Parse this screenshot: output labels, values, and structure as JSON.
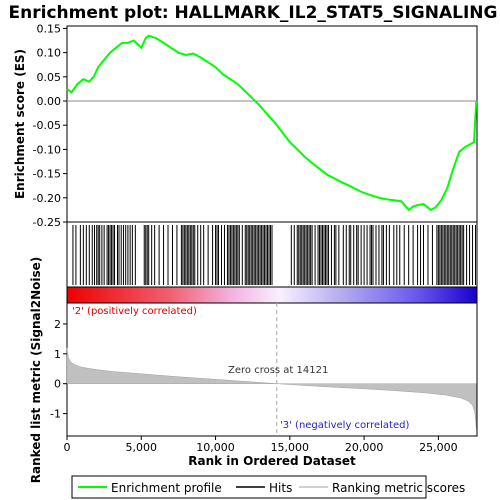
{
  "chart_data": [
    {
      "type": "line",
      "title": "Enrichment plot: HALLMARK_IL2_STAT5_SIGNALING",
      "ylabel": "Enrichment score (ES)",
      "xlim": [
        0,
        27600
      ],
      "ylim": [
        -0.25,
        0.155
      ],
      "yticks": [
        "0.15",
        "0.10",
        "0.05",
        "0.00",
        "-0.05",
        "-0.10",
        "-0.15",
        "-0.20",
        "-0.25"
      ],
      "ytick_values": [
        0.15,
        0.1,
        0.05,
        0.0,
        -0.05,
        -0.1,
        -0.15,
        -0.2,
        -0.25
      ],
      "series": [
        {
          "name": "Enrichment profile",
          "color": "#00ff00",
          "x": [
            0,
            300,
            700,
            1100,
            1500,
            1800,
            2100,
            2500,
            2900,
            3300,
            3700,
            4100,
            4500,
            5000,
            5300,
            5500,
            6000,
            6500,
            7000,
            7500,
            8000,
            8500,
            9000,
            9500,
            10000,
            10500,
            11000,
            11500,
            12000,
            12500,
            13000,
            13500,
            14000,
            14500,
            15000,
            15500,
            16000,
            16500,
            17000,
            17500,
            18000,
            18500,
            19000,
            19500,
            20000,
            20500,
            21000,
            21500,
            22000,
            22500,
            23000,
            23300,
            23600,
            24000,
            24500,
            24800,
            25200,
            25600,
            26000,
            26400,
            26800,
            27100,
            27400,
            27550
          ],
          "values": [
            0.025,
            0.018,
            0.035,
            0.045,
            0.04,
            0.05,
            0.07,
            0.085,
            0.1,
            0.11,
            0.12,
            0.12,
            0.125,
            0.11,
            0.13,
            0.135,
            0.13,
            0.12,
            0.11,
            0.1,
            0.095,
            0.098,
            0.09,
            0.08,
            0.07,
            0.055,
            0.045,
            0.035,
            0.02,
            0.005,
            -0.01,
            -0.028,
            -0.045,
            -0.065,
            -0.085,
            -0.1,
            -0.115,
            -0.128,
            -0.14,
            -0.152,
            -0.16,
            -0.168,
            -0.175,
            -0.183,
            -0.19,
            -0.195,
            -0.2,
            -0.203,
            -0.205,
            -0.207,
            -0.225,
            -0.218,
            -0.215,
            -0.213,
            -0.225,
            -0.22,
            -0.205,
            -0.18,
            -0.14,
            -0.105,
            -0.095,
            -0.09,
            -0.085,
            0.0
          ]
        }
      ]
    },
    {
      "type": "hits",
      "series_name": "Hits",
      "hit_positions": [
        400,
        600,
        900,
        1100,
        1300,
        1500,
        1700,
        1850,
        2000,
        2100,
        2200,
        2350,
        2500,
        2700,
        2800,
        2900,
        3000,
        3100,
        3200,
        3400,
        3500,
        3650,
        3800,
        3950,
        4100,
        4250,
        4400,
        4600,
        5200,
        5300,
        5400,
        5500,
        5700,
        5900,
        6200,
        6500,
        6800,
        7100,
        7400,
        7700,
        7800,
        7900,
        8000,
        8100,
        8200,
        8300,
        8400,
        8500,
        8600,
        8800,
        9000,
        9200,
        9500,
        9800,
        10000,
        10100,
        10200,
        10400,
        10600,
        10800,
        10900,
        11000,
        11100,
        11200,
        11300,
        11400,
        11500,
        11600,
        11800,
        12000,
        12100,
        12200,
        12300,
        12400,
        12500,
        12600,
        12700,
        12800,
        12900,
        13000,
        13100,
        13200,
        13300,
        13400,
        13500,
        13600,
        13700,
        13800,
        15100,
        15300,
        15500,
        15600,
        15700,
        15800,
        15900,
        16000,
        16100,
        16200,
        16300,
        16400,
        16500,
        16700,
        16900,
        17000,
        17100,
        17200,
        17300,
        17400,
        17500,
        17600,
        17800,
        18000,
        18100,
        18300,
        18600,
        18800,
        19000,
        19100,
        19300,
        19500,
        19600,
        19800,
        20000,
        20200,
        20400,
        20500,
        20600,
        20800,
        21000,
        21200,
        21300,
        21500,
        21700,
        22000,
        22200,
        22400,
        22700,
        23000,
        23300,
        23600,
        23800,
        24000,
        24300,
        24600,
        24900,
        25000,
        25100,
        25200,
        25300,
        25400,
        25500,
        25600,
        25700,
        25800,
        25900,
        26000,
        26100,
        26200,
        26300,
        26400,
        26500,
        26600,
        26700,
        26900,
        27100,
        27300,
        27500
      ]
    },
    {
      "type": "area",
      "xlabel": "Rank in Ordered Dataset",
      "ylabel": "Ranked list metric (Signal2Noise)",
      "xlim": [
        0,
        27600
      ],
      "ylim": [
        -1.75,
        2.7
      ],
      "xticks": [
        "0",
        "5,000",
        "10,000",
        "15,000",
        "20,000",
        "25,000"
      ],
      "xtick_values": [
        0,
        5000,
        10000,
        15000,
        20000,
        25000
      ],
      "yticks": [
        "2",
        "1",
        "0",
        "-1"
      ],
      "ytick_values": [
        2,
        1,
        0,
        -1
      ],
      "series": [
        {
          "name": "Ranking metric scores",
          "color": "#c0c0c0",
          "x": [
            0,
            100,
            300,
            600,
            1000,
            2000,
            3000,
            5000,
            7000,
            9000,
            11000,
            13000,
            14121,
            16000,
            18000,
            20000,
            22000,
            24000,
            25500,
            26500,
            27000,
            27300,
            27450,
            27550
          ],
          "values": [
            1.2,
            0.85,
            0.7,
            0.62,
            0.55,
            0.47,
            0.41,
            0.33,
            0.25,
            0.18,
            0.11,
            0.04,
            0.0,
            -0.06,
            -0.12,
            -0.17,
            -0.23,
            -0.3,
            -0.38,
            -0.48,
            -0.58,
            -0.72,
            -0.95,
            -1.5
          ]
        }
      ],
      "annotations": {
        "positive": "'2' (positively correlated)",
        "negative": "'3' (negatively correlated)",
        "zero_cross": "Zero cross at 14121"
      },
      "zero_cross_x": 14121
    }
  ],
  "legend": {
    "items": [
      "Enrichment profile",
      "Hits",
      "Ranking metric scores"
    ],
    "placement": "bottom"
  }
}
